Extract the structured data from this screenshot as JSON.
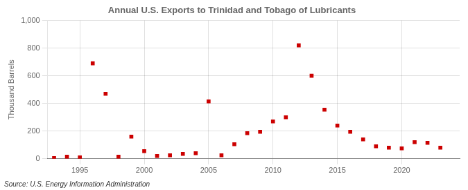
{
  "chart_data": {
    "type": "scatter",
    "title": "Annual U.S. Exports to Trinidad and Tobago of Lubricants",
    "ylabel": "Thousand Barrels",
    "source": "Source: U.S. Energy Information Administration",
    "color": "#cc0000",
    "marker": "square",
    "x": [
      1993,
      1994,
      1995,
      1996,
      1997,
      1998,
      1999,
      2000,
      2001,
      2002,
      2003,
      2004,
      2005,
      2006,
      2007,
      2008,
      2009,
      2010,
      2011,
      2012,
      2013,
      2014,
      2015,
      2016,
      2017,
      2018,
      2019,
      2020,
      2021,
      2022,
      2023
    ],
    "values": [
      5,
      15,
      10,
      690,
      470,
      15,
      160,
      55,
      20,
      25,
      35,
      40,
      415,
      25,
      105,
      185,
      195,
      270,
      300,
      820,
      600,
      355,
      240,
      195,
      140,
      90,
      80,
      75,
      120,
      115,
      80
    ],
    "xlim": [
      1992.5,
      2024.5
    ],
    "xticks": [
      1995,
      2000,
      2005,
      2010,
      2015,
      2020
    ],
    "ylim": [
      0,
      1000
    ],
    "yticks": [
      0,
      200,
      400,
      600,
      800,
      {
        "value": 1000,
        "label": "1,000"
      }
    ],
    "grid": true
  }
}
